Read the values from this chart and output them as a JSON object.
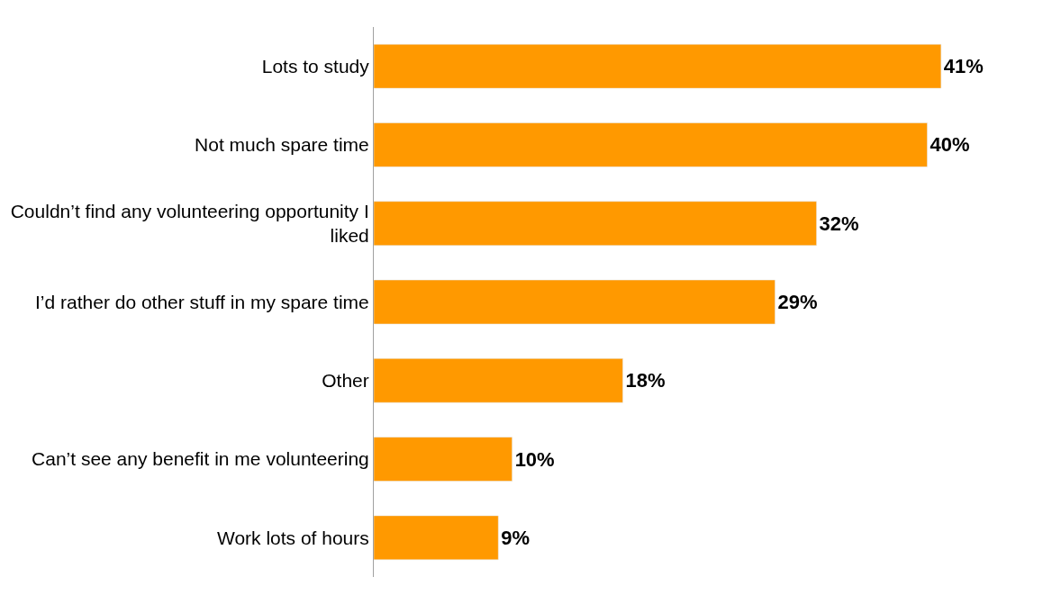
{
  "chart_data": {
    "type": "bar",
    "orientation": "horizontal",
    "categories": [
      "Lots to study",
      "Not much spare time",
      "Couldn’t find any volunteering opportunity I liked",
      "I’d rather do other stuff in my spare time",
      "Other",
      "Can’t see any benefit in me volunteering",
      "Work lots of hours"
    ],
    "values": [
      41,
      40,
      32,
      29,
      18,
      10,
      9
    ],
    "value_labels": [
      "41%",
      "40%",
      "32%",
      "29%",
      "18%",
      "10%",
      "9%"
    ],
    "color": "#ff9900"
  }
}
